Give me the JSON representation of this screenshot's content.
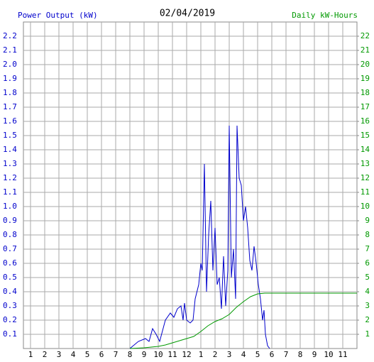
{
  "chart_data": {
    "type": "line",
    "title": "02/04/2019",
    "y_label": "Power Output (kW)",
    "y2_label": "Daily kW-Hours",
    "grid": true,
    "xlim": [
      0.5,
      24
    ],
    "xticks": [
      1,
      2,
      3,
      4,
      5,
      6,
      7,
      8,
      9,
      10,
      11,
      12,
      {
        "value": 13,
        "label": "1"
      },
      {
        "value": 14,
        "label": "2"
      },
      {
        "value": 15,
        "label": "3"
      },
      {
        "value": 16,
        "label": "4"
      },
      {
        "value": 17,
        "label": "5"
      },
      {
        "value": 18,
        "label": "6"
      },
      {
        "value": 19,
        "label": "7"
      },
      {
        "value": 20,
        "label": "8"
      },
      {
        "value": 21,
        "label": "9"
      },
      {
        "value": 22,
        "label": "10"
      },
      {
        "value": 23,
        "label": "11"
      }
    ],
    "ylim": [
      0,
      2.3
    ],
    "yticks": [
      0.1,
      0.2,
      0.3,
      0.4,
      0.5,
      0.6,
      0.7,
      0.8,
      0.9,
      {
        "value": 1,
        "label": "1.0"
      },
      1.1,
      1.2,
      1.3,
      1.4,
      1.5,
      1.6,
      1.7,
      1.8,
      1.9,
      {
        "value": 2,
        "label": "2.0"
      },
      2.1,
      2.2
    ],
    "y2lim": [
      0,
      23
    ],
    "y2ticks": [
      1,
      2,
      3,
      4,
      5,
      6,
      7,
      8,
      9,
      10,
      11,
      12,
      13,
      14,
      15,
      16,
      17,
      18,
      19,
      20,
      21,
      22
    ],
    "series": [
      {
        "name": "Power Output (kW)",
        "color": "#0000cc",
        "x": [
          8.0,
          8.6,
          9.1,
          9.35,
          9.6,
          9.85,
          10.1,
          10.5,
          10.85,
          11.1,
          11.35,
          11.6,
          11.75,
          11.85,
          12.0,
          12.25,
          12.45,
          12.6,
          12.85,
          13.0,
          13.1,
          13.25,
          13.4,
          13.55,
          13.7,
          13.85,
          14.0,
          14.15,
          14.3,
          14.45,
          14.6,
          14.75,
          14.9,
          15.0,
          15.15,
          15.3,
          15.45,
          15.55,
          15.7,
          15.85,
          16.0,
          16.15,
          16.3,
          16.45,
          16.6,
          16.75,
          16.9,
          17.05,
          17.2,
          17.35,
          17.45,
          17.55,
          17.7,
          17.85
        ],
        "values": [
          0,
          0.05,
          0.07,
          0.05,
          0.14,
          0.1,
          0.05,
          0.2,
          0.25,
          0.22,
          0.28,
          0.3,
          0.2,
          0.32,
          0.2,
          0.18,
          0.2,
          0.35,
          0.45,
          0.6,
          0.55,
          1.3,
          0.4,
          0.8,
          1.04,
          0.55,
          0.85,
          0.45,
          0.5,
          0.28,
          0.65,
          0.3,
          0.55,
          1.57,
          0.5,
          0.7,
          0.35,
          1.57,
          1.2,
          1.15,
          0.9,
          1.0,
          0.85,
          0.62,
          0.55,
          0.72,
          0.6,
          0.45,
          0.35,
          0.2,
          0.27,
          0.1,
          0.02,
          0
        ]
      },
      {
        "name": "Daily kW-Hours",
        "color": "#009900",
        "axis": "y2",
        "x": [
          8,
          9,
          10,
          10.5,
          11,
          11.5,
          12,
          12.5,
          13,
          13.5,
          14,
          14.5,
          15,
          15.5,
          16,
          16.5,
          17,
          17.5,
          24
        ],
        "values": [
          0,
          0.05,
          0.15,
          0.25,
          0.4,
          0.55,
          0.7,
          0.85,
          1.2,
          1.6,
          1.9,
          2.1,
          2.4,
          2.9,
          3.3,
          3.65,
          3.85,
          3.9,
          3.9
        ]
      }
    ]
  }
}
